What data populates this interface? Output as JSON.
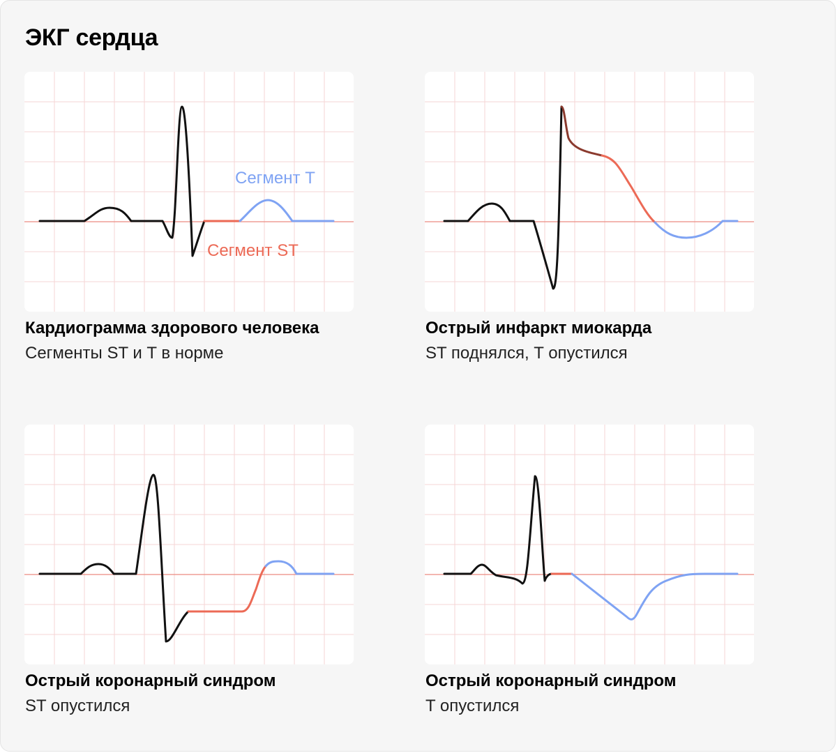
{
  "title": "ЭКГ сердца",
  "colors": {
    "qrs": "#111111",
    "st_segment": "#ec6a56",
    "t_segment": "#7fa3f3",
    "infarct_dark": "#8b3a2e",
    "grid": "#f6d6d6",
    "baseline": "#ec8b80",
    "panel_bg": "#ffffff",
    "card_bg": "#f6f6f6"
  },
  "panels": [
    {
      "title": "Кардиограмма здорового человека",
      "subtitle": "Сегменты ST и T в норме",
      "label_t": "Сегмент T",
      "label_st": "Сегмент ST"
    },
    {
      "title": "Острый инфаркт миокарда",
      "subtitle": "ST поднялся, T опустился"
    },
    {
      "title": "Острый коронарный синдром",
      "subtitle": "ST опустился"
    },
    {
      "title": "Острый коронарный синдром",
      "subtitle": "T опустился"
    }
  ]
}
